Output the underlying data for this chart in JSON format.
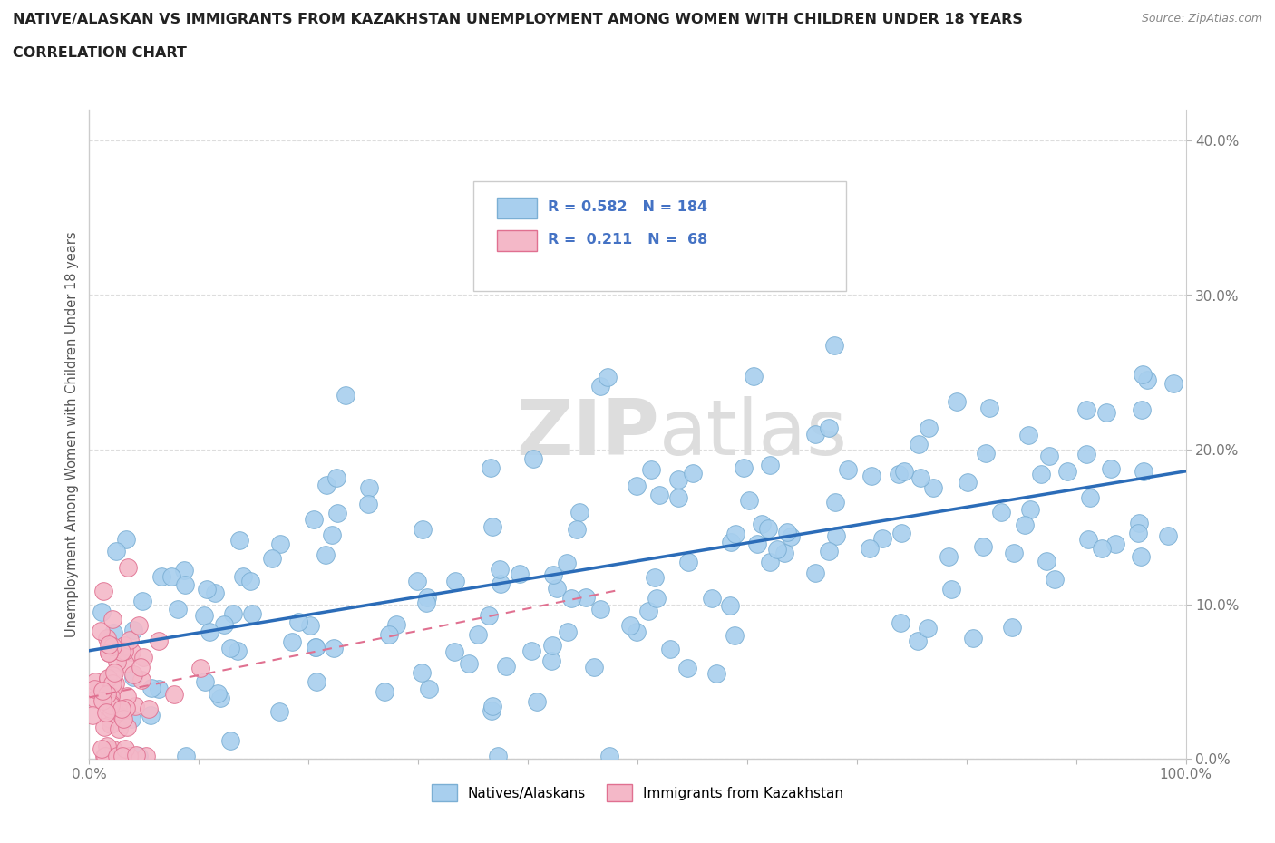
{
  "title_line1": "NATIVE/ALASKAN VS IMMIGRANTS FROM KAZAKHSTAN UNEMPLOYMENT AMONG WOMEN WITH CHILDREN UNDER 18 YEARS",
  "title_line2": "CORRELATION CHART",
  "source_text": "Source: ZipAtlas.com",
  "ylabel": "Unemployment Among Women with Children Under 18 years",
  "xlim": [
    0,
    1.0
  ],
  "ylim": [
    0,
    0.42
  ],
  "ytick_vals": [
    0.0,
    0.1,
    0.2,
    0.3,
    0.4
  ],
  "yticklabels": [
    "0.0%",
    "10.0%",
    "20.0%",
    "30.0%",
    "40.0%"
  ],
  "xtick_vals": [
    0.0,
    0.1,
    0.2,
    0.3,
    0.4,
    0.5,
    0.6,
    0.7,
    0.8,
    0.9,
    1.0
  ],
  "xticklabels": [
    "0.0%",
    "",
    "",
    "",
    "",
    "",
    "",
    "",
    "",
    "",
    "100.0%"
  ],
  "native_color": "#A8CFEE",
  "native_edge_color": "#7BAFD4",
  "immigrant_color": "#F4B8C8",
  "immigrant_edge_color": "#E07090",
  "regression_native_color": "#2B6CB8",
  "regression_immigrant_color": "#E07090",
  "legend_R_native": "0.582",
  "legend_N_native": "184",
  "legend_R_immigrant": "0.211",
  "legend_N_immigrant": "68",
  "watermark_color": "#DDDDDD",
  "title_color": "#222222",
  "axis_color": "#CCCCCC",
  "background_color": "#FFFFFF",
  "grid_color": "#DDDDDD",
  "legend_text_color": "#4472C4",
  "source_color": "#888888",
  "ylabel_color": "#555555"
}
